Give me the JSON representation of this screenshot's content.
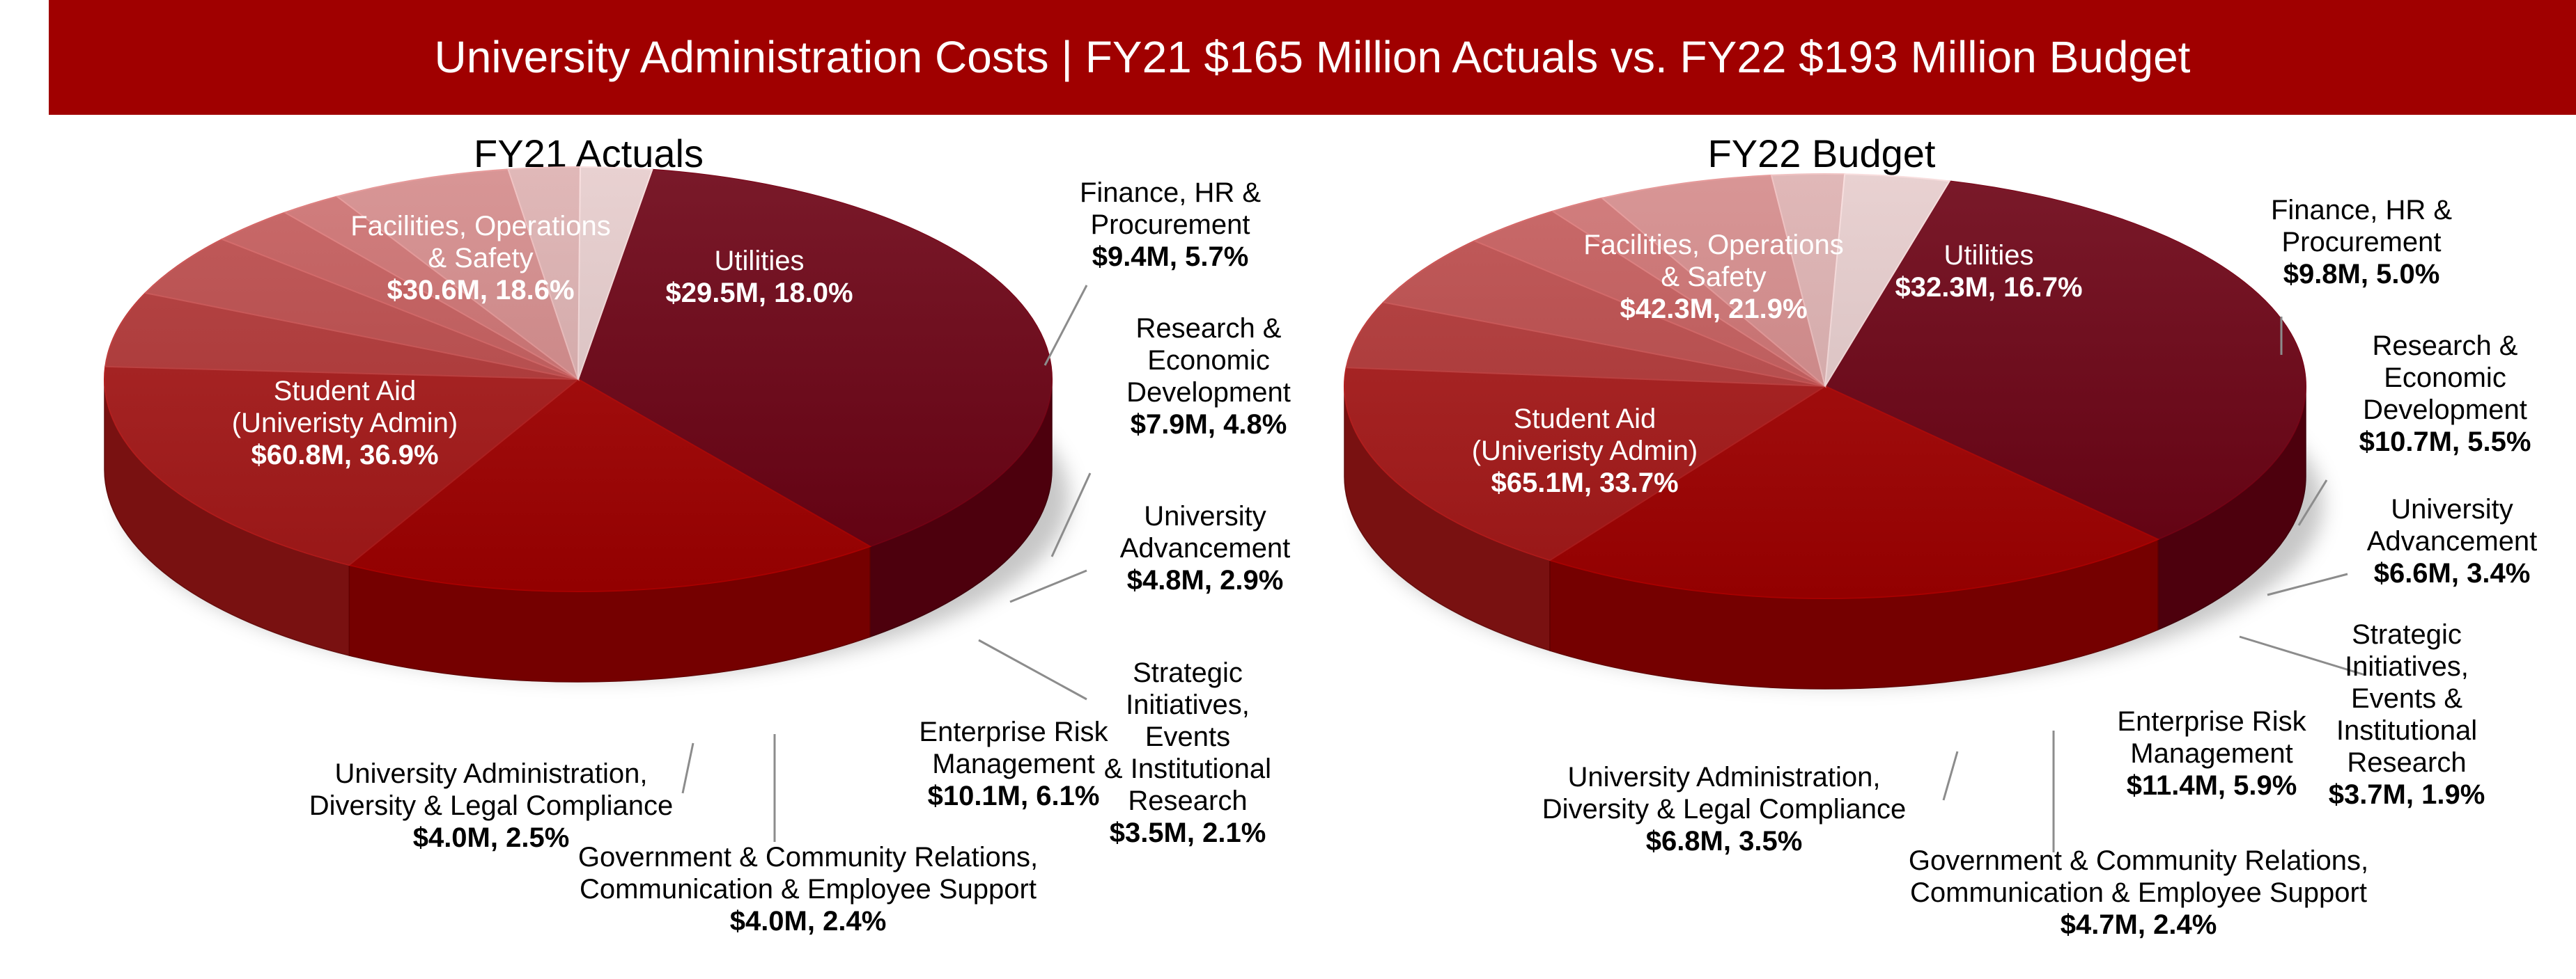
{
  "title": "University Administration Costs | FY21 $165 Million Actuals vs. FY22 $193 Million Budget",
  "colors": {
    "banner": "#a00000",
    "student_aid": "#6b0012",
    "facilities": "#a30000",
    "utilities": "#a81818",
    "finance": "#b23535",
    "research": "#bc4a4a",
    "advancement": "#c45a5a",
    "strategic": "#cd7070",
    "risk": "#d48a8a",
    "government": "#ddb0b0",
    "admin": "#e6cccc"
  },
  "chart_data": [
    {
      "type": "pie",
      "title": "FY21 Actuals",
      "slices": [
        {
          "key": "student_aid",
          "lines": [
            "Student Aid",
            "(Univeristy Admin)"
          ],
          "value_label": "$60.8M, 36.9%",
          "value_musd": 60.8,
          "pct": 36.9
        },
        {
          "key": "facilities",
          "lines": [
            "Facilities, Operations",
            "& Safety"
          ],
          "value_label": "$30.6M, 18.6%",
          "value_musd": 30.6,
          "pct": 18.6
        },
        {
          "key": "utilities",
          "lines": [
            "Utilities"
          ],
          "value_label": "$29.5M, 18.0%",
          "value_musd": 29.5,
          "pct": 18.0
        },
        {
          "key": "finance",
          "lines": [
            "Finance, HR &",
            "Procurement"
          ],
          "value_label": "$9.4M, 5.7%",
          "value_musd": 9.4,
          "pct": 5.7
        },
        {
          "key": "research",
          "lines": [
            "Research &",
            "Economic",
            "Development"
          ],
          "value_label": "$7.9M, 4.8%",
          "value_musd": 7.9,
          "pct": 4.8
        },
        {
          "key": "advancement",
          "lines": [
            "University",
            "Advancement"
          ],
          "value_label": "$4.8M, 2.9%",
          "value_musd": 4.8,
          "pct": 2.9
        },
        {
          "key": "strategic",
          "lines": [
            "Strategic",
            "Initiatives,",
            "Events",
            "& Institutional",
            "Research"
          ],
          "value_label": "$3.5M, 2.1%",
          "value_musd": 3.5,
          "pct": 2.1
        },
        {
          "key": "risk",
          "lines": [
            "Enterprise Risk",
            "Management"
          ],
          "value_label": "$10.1M, 6.1%",
          "value_musd": 10.1,
          "pct": 6.1
        },
        {
          "key": "government",
          "lines": [
            "Government & Community Relations,",
            "Communication & Employee Support"
          ],
          "value_label": "$4.0M, 2.4%",
          "value_musd": 4.0,
          "pct": 2.4
        },
        {
          "key": "admin",
          "lines": [
            "University Administration,",
            "Diversity & Legal Compliance"
          ],
          "value_label": "$4.0M, 2.5%",
          "value_musd": 4.0,
          "pct": 2.5
        }
      ]
    },
    {
      "type": "pie",
      "title": "FY22 Budget",
      "slices": [
        {
          "key": "student_aid",
          "lines": [
            "Student Aid",
            "(Univeristy Admin)"
          ],
          "value_label": "$65.1M, 33.7%",
          "value_musd": 65.1,
          "pct": 33.7
        },
        {
          "key": "facilities",
          "lines": [
            "Facilities, Operations",
            "& Safety"
          ],
          "value_label": "$42.3M, 21.9%",
          "value_musd": 42.3,
          "pct": 21.9
        },
        {
          "key": "utilities",
          "lines": [
            "Utilities"
          ],
          "value_label": "$32.3M, 16.7%",
          "value_musd": 32.3,
          "pct": 16.7
        },
        {
          "key": "finance",
          "lines": [
            "Finance, HR &",
            "Procurement"
          ],
          "value_label": "$9.8M, 5.0%",
          "value_musd": 9.8,
          "pct": 5.0
        },
        {
          "key": "research",
          "lines": [
            "Research &",
            "Economic",
            "Development"
          ],
          "value_label": "$10.7M, 5.5%",
          "value_musd": 10.7,
          "pct": 5.5
        },
        {
          "key": "advancement",
          "lines": [
            "University",
            "Advancement"
          ],
          "value_label": "$6.6M, 3.4%",
          "value_musd": 6.6,
          "pct": 3.4
        },
        {
          "key": "strategic",
          "lines": [
            "Strategic",
            "Initiatives,",
            "Events &",
            "Institutional",
            "Research"
          ],
          "value_label": "$3.7M, 1.9%",
          "value_musd": 3.7,
          "pct": 1.9
        },
        {
          "key": "risk",
          "lines": [
            "Enterprise Risk",
            "Management"
          ],
          "value_label": "$11.4M, 5.9%",
          "value_musd": 11.4,
          "pct": 5.9
        },
        {
          "key": "government",
          "lines": [
            "Government & Community Relations,",
            "Communication & Employee Support"
          ],
          "value_label": "$4.7M, 2.4%",
          "value_musd": 4.7,
          "pct": 2.4
        },
        {
          "key": "admin",
          "lines": [
            "University Administration,",
            "Diversity & Legal Compliance"
          ],
          "value_label": "$6.8M, 3.5%",
          "value_musd": 6.8,
          "pct": 3.5
        }
      ]
    }
  ]
}
